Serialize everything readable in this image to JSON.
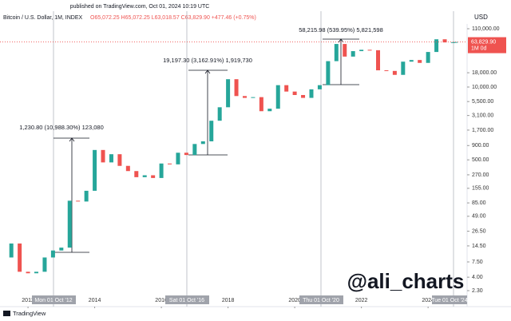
{
  "header": {
    "published": "published on TradingView.com, Oct 01, 2024 10:19 UTC",
    "symbol": "Bitcoin / U.S. Dollar, 1M, INDEX",
    "ohlc": "O65,072.25 H65,072.25 L63,018.57 C63,829.90 +477.46 (+0.75%)",
    "currency": "USD"
  },
  "chart_data": {
    "type": "candlestick",
    "log_scale": true,
    "grid": false,
    "up_color": "#26a69a",
    "down_color": "#ef5350",
    "x": [
      2011.33,
      2011.5,
      2011.75,
      2012.0,
      2012.25,
      2012.5,
      2012.75,
      2013.0,
      2013.25,
      2013.5,
      2013.75,
      2014.0,
      2014.25,
      2014.5,
      2014.75,
      2015.0,
      2015.25,
      2015.5,
      2015.75,
      2016.0,
      2016.25,
      2016.5,
      2016.75,
      2017.0,
      2017.25,
      2017.5,
      2017.75,
      2018.0,
      2018.25,
      2018.5,
      2018.75,
      2019.0,
      2019.25,
      2019.5,
      2019.75,
      2020.0,
      2020.25,
      2020.5,
      2020.75,
      2021.0,
      2021.25,
      2021.5,
      2021.75,
      2022.0,
      2022.25,
      2022.5,
      2022.75,
      2023.0,
      2023.25,
      2023.5,
      2023.75,
      2024.0,
      2024.25,
      2024.5,
      2024.75,
      2024.83
    ],
    "values": [
      9,
      16,
      5,
      4.7,
      5,
      9,
      12,
      13.5,
      93,
      90,
      140,
      750,
      450,
      630,
      390,
      315,
      245,
      265,
      237,
      430,
      415,
      670,
      610,
      960,
      1070,
      2500,
      4350,
      13800,
      6900,
      6400,
      6600,
      3700,
      4100,
      10800,
      8300,
      7200,
      6400,
      9100,
      10800,
      29000,
      58800,
      35000,
      43800,
      46300,
      45500,
      19900,
      19400,
      16500,
      28400,
      30400,
      27000,
      42300,
      71300,
      62700,
      63300,
      63829.9
    ],
    "xlim": [
      2011.16,
      2025.17
    ],
    "xticks": [
      2012,
      2014,
      2016,
      2018,
      2020,
      2022,
      2024
    ],
    "ylim": [
      1.95,
      134000
    ],
    "yticks": [
      {
        "value": 110000,
        "label": "110,000.00"
      },
      {
        "value": 18000,
        "label": "18,000.00"
      },
      {
        "value": 10000,
        "label": "10,000.00"
      },
      {
        "value": 5500,
        "label": "5,500.00"
      },
      {
        "value": 3100,
        "label": "3,100.00"
      },
      {
        "value": 1700,
        "label": "1,700.00"
      },
      {
        "value": 900,
        "label": "900.00"
      },
      {
        "value": 500,
        "label": "500.00"
      },
      {
        "value": 270,
        "label": "270.00"
      },
      {
        "value": 155,
        "label": "155.00"
      },
      {
        "value": 85,
        "label": "85.00"
      },
      {
        "value": 49,
        "label": "49.00"
      },
      {
        "value": 26.5,
        "label": "26.50"
      },
      {
        "value": 14.5,
        "label": "14.50"
      },
      {
        "value": 7.5,
        "label": "7.50"
      },
      {
        "value": 4,
        "label": "4.00"
      },
      {
        "value": 2.3,
        "label": "2.30"
      }
    ],
    "price_label": {
      "value": 63829.9,
      "label": "63,829.90"
    },
    "countdown": "1M 0d",
    "annotations": [
      "1,230.80 (10,988.30%) 123,080",
      "19,197.30 (3,162.91%) 1,919,730",
      "58,215.98 (539.95%) 5,821,598"
    ],
    "cursor_labels": [
      "Mon 01 Oct '12",
      "Sat 01 Oct '16",
      "Thu 01 Oct '20",
      "Tue 01 Oct '24"
    ],
    "watermark": "@ali_charts"
  },
  "footer": {
    "brand": "TradingView"
  }
}
